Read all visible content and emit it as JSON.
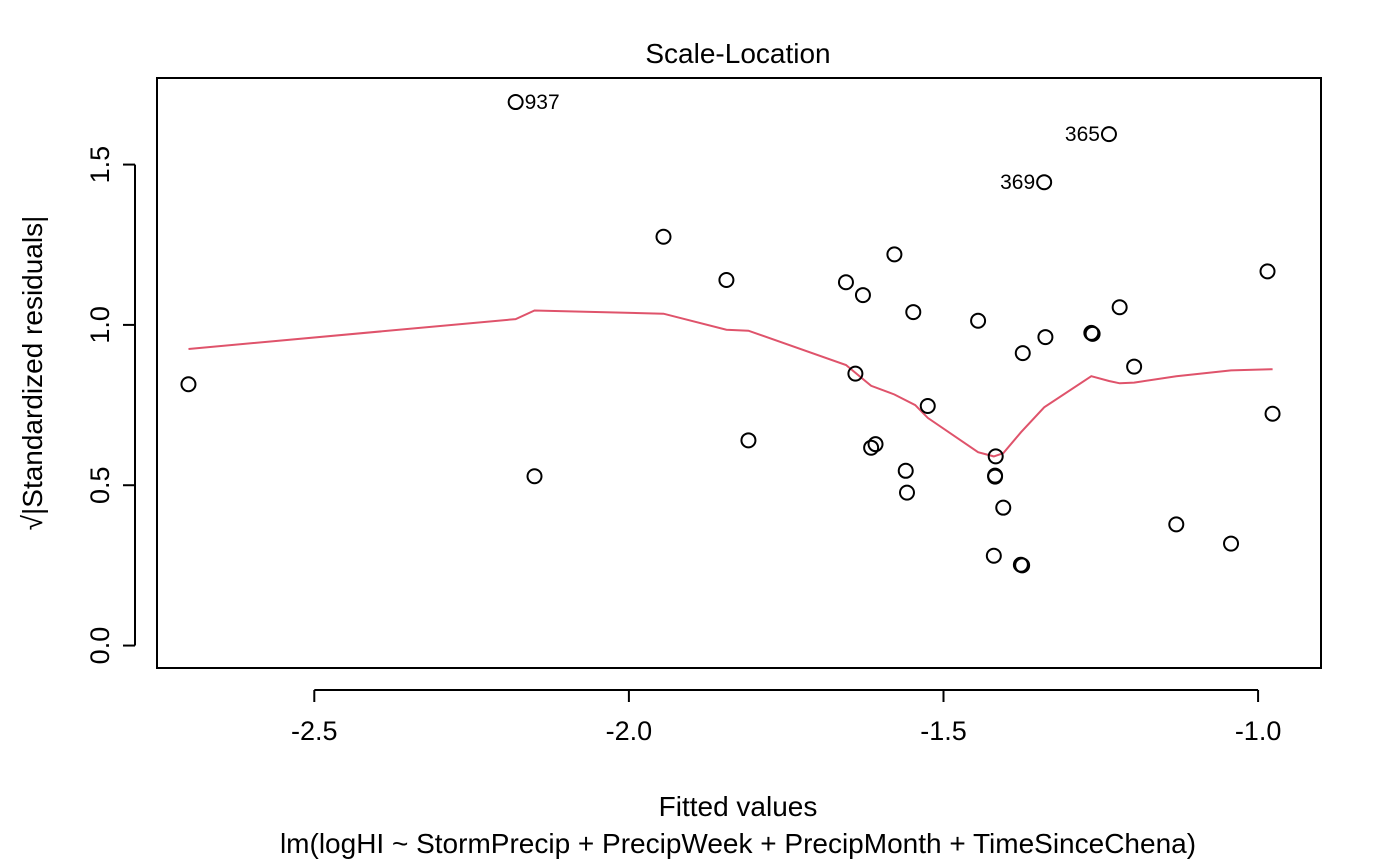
{
  "chart_data": {
    "type": "scatter",
    "title": "Scale-Location",
    "xlabel": "Fitted values",
    "ylabel": "√|Standardized residuals|",
    "subtitle": "lm(logHI ~ StormPrecip + PrecipWeek + PrecipMonth + TimeSinceChena)",
    "xlim": [
      -2.75,
      -0.9
    ],
    "ylim": [
      -0.07,
      1.77
    ],
    "x_ticks": [
      -2.5,
      -2.0,
      -1.5,
      -1.0
    ],
    "x_tick_labels": [
      "-2.5",
      "-2.0",
      "-1.5",
      "-1.0"
    ],
    "y_ticks": [
      0.0,
      0.5,
      1.0,
      1.5
    ],
    "y_tick_labels": [
      "0.0",
      "0.5",
      "1.0",
      "1.5"
    ],
    "grid": false,
    "points": [
      {
        "x": -2.7,
        "y": 0.815
      },
      {
        "x": -2.18,
        "y": 1.695,
        "label": "937"
      },
      {
        "x": -2.15,
        "y": 0.528
      },
      {
        "x": -1.945,
        "y": 1.275
      },
      {
        "x": -1.845,
        "y": 1.14
      },
      {
        "x": -1.81,
        "y": 0.64
      },
      {
        "x": -1.655,
        "y": 1.133
      },
      {
        "x": -1.64,
        "y": 0.848
      },
      {
        "x": -1.628,
        "y": 1.093
      },
      {
        "x": -1.615,
        "y": 0.617
      },
      {
        "x": -1.608,
        "y": 0.628
      },
      {
        "x": -1.578,
        "y": 1.22
      },
      {
        "x": -1.56,
        "y": 0.545
      },
      {
        "x": -1.558,
        "y": 0.477
      },
      {
        "x": -1.548,
        "y": 1.04
      },
      {
        "x": -1.525,
        "y": 0.747
      },
      {
        "x": -1.445,
        "y": 1.013
      },
      {
        "x": -1.42,
        "y": 0.28
      },
      {
        "x": -1.418,
        "y": 0.53
      },
      {
        "x": -1.418,
        "y": 0.527
      },
      {
        "x": -1.417,
        "y": 0.59
      },
      {
        "x": -1.405,
        "y": 0.43
      },
      {
        "x": -1.377,
        "y": 0.252
      },
      {
        "x": -1.375,
        "y": 0.25
      },
      {
        "x": -1.374,
        "y": 0.912
      },
      {
        "x": -1.34,
        "y": 1.445,
        "label": "369"
      },
      {
        "x": -1.338,
        "y": 0.962
      },
      {
        "x": -1.265,
        "y": 0.975
      },
      {
        "x": -1.263,
        "y": 0.972
      },
      {
        "x": -1.237,
        "y": 1.595,
        "label": "365"
      },
      {
        "x": -1.22,
        "y": 1.055
      },
      {
        "x": -1.197,
        "y": 0.87
      },
      {
        "x": -1.13,
        "y": 0.378
      },
      {
        "x": -1.043,
        "y": 0.318
      },
      {
        "x": -0.985,
        "y": 1.167
      },
      {
        "x": -0.977,
        "y": 0.723
      }
    ],
    "smooth_line": {
      "x": [
        -2.7,
        -2.18,
        -2.15,
        -1.945,
        -1.845,
        -1.81,
        -1.655,
        -1.615,
        -1.578,
        -1.545,
        -1.525,
        -1.445,
        -1.42,
        -1.405,
        -1.377,
        -1.34,
        -1.265,
        -1.237,
        -1.22,
        -1.197,
        -1.13,
        -1.043,
        -0.977
      ],
      "y": [
        0.925,
        1.018,
        1.045,
        1.035,
        0.985,
        0.982,
        0.875,
        0.81,
        0.783,
        0.75,
        0.71,
        0.603,
        0.59,
        0.6,
        0.665,
        0.743,
        0.84,
        0.825,
        0.818,
        0.82,
        0.84,
        0.858,
        0.862
      ],
      "color": "#DF536B"
    },
    "point_color": "#000000"
  }
}
